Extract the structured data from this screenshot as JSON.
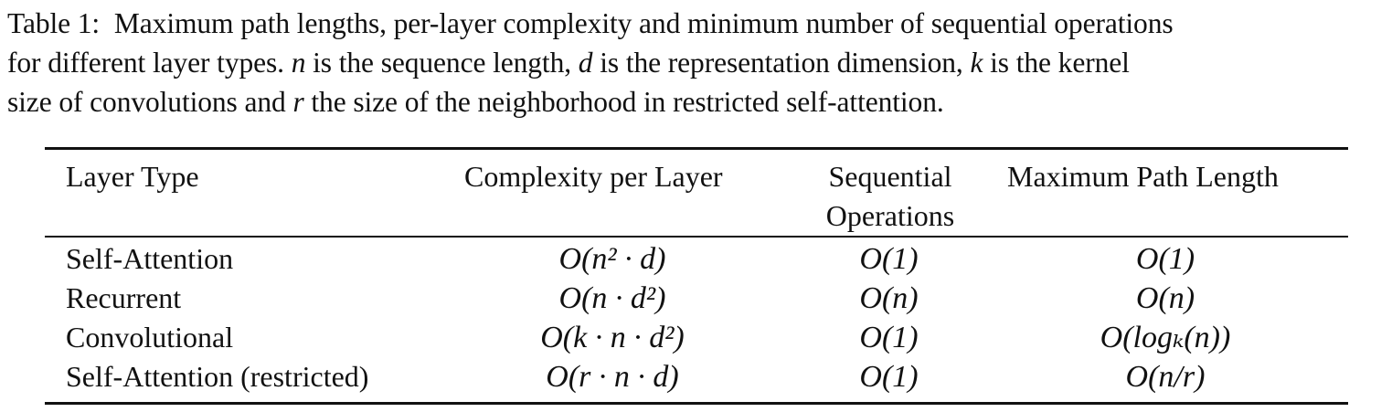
{
  "caption": {
    "label": "Table 1:",
    "line1": "Maximum path lengths, per-layer complexity and minimum number of sequential operations",
    "line2_a": "for different layer types. ",
    "line2_n": "n",
    "line2_b": " is the sequence length, ",
    "line2_d": "d",
    "line2_c": " is the representation dimension, ",
    "line2_k": "k",
    "line2_e": " is the kernel",
    "line3_a": "size of convolutions and ",
    "line3_r": "r",
    "line3_b": " the size of the neighborhood in restricted self-attention."
  },
  "table": {
    "headers": {
      "layer_type": "Layer Type",
      "complexity": "Complexity per Layer",
      "sequential_line1": "Sequential",
      "sequential_line2": "Operations",
      "max_path": "Maximum Path Length"
    },
    "rows": [
      {
        "layer_type": "Self-Attention",
        "complexity": "O(n² · d)",
        "sequential": "O(1)",
        "max_path": "O(1)"
      },
      {
        "layer_type": "Recurrent",
        "complexity": "O(n · d²)",
        "sequential": "O(n)",
        "max_path": "O(n)"
      },
      {
        "layer_type": "Convolutional",
        "complexity": "O(k · n · d²)",
        "sequential": "O(1)",
        "max_path": "O(logₖ(n))"
      },
      {
        "layer_type": "Self-Attention (restricted)",
        "complexity": "O(r · n · d)",
        "sequential": "O(1)",
        "max_path": "O(n/r)"
      }
    ]
  }
}
